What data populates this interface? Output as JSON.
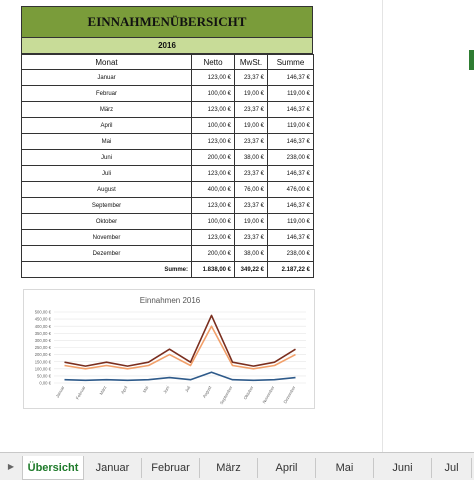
{
  "sheet": {
    "title": "EINNAHMENÜBERSICHT",
    "year": "2016",
    "headers": [
      "Monat",
      "Netto",
      "MwSt.",
      "Summe"
    ],
    "rows": [
      {
        "monat": "Januar",
        "netto": "123,00 €",
        "mwst": "23,37 €",
        "summe": "146,37 €"
      },
      {
        "monat": "Februar",
        "netto": "100,00 €",
        "mwst": "19,00 €",
        "summe": "119,00 €"
      },
      {
        "monat": "März",
        "netto": "123,00 €",
        "mwst": "23,37 €",
        "summe": "146,37 €"
      },
      {
        "monat": "April",
        "netto": "100,00 €",
        "mwst": "19,00 €",
        "summe": "119,00 €"
      },
      {
        "monat": "Mai",
        "netto": "123,00 €",
        "mwst": "23,37 €",
        "summe": "146,37 €"
      },
      {
        "monat": "Juni",
        "netto": "200,00 €",
        "mwst": "38,00 €",
        "summe": "238,00 €"
      },
      {
        "monat": "Juli",
        "netto": "123,00 €",
        "mwst": "23,37 €",
        "summe": "146,37 €"
      },
      {
        "monat": "August",
        "netto": "400,00 €",
        "mwst": "76,00 €",
        "summe": "476,00 €"
      },
      {
        "monat": "September",
        "netto": "123,00 €",
        "mwst": "23,37 €",
        "summe": "146,37 €"
      },
      {
        "monat": "Oktober",
        "netto": "100,00 €",
        "mwst": "19,00 €",
        "summe": "119,00 €"
      },
      {
        "monat": "November",
        "netto": "123,00 €",
        "mwst": "23,37 €",
        "summe": "146,37 €"
      },
      {
        "monat": "Dezember",
        "netto": "200,00 €",
        "mwst": "38,00 €",
        "summe": "238,00 €"
      }
    ],
    "summe_label": "Summe:",
    "totals": {
      "netto": "1.838,00 €",
      "mwst": "349,22 €",
      "summe": "2.187,22 €"
    }
  },
  "chart_data": {
    "type": "line",
    "title": "Einnahmen 2016",
    "categories": [
      "Januar",
      "Februar",
      "März",
      "April",
      "Mai",
      "Juni",
      "Juli",
      "August",
      "September",
      "Oktober",
      "November",
      "Dezember"
    ],
    "y_ticks": [
      "0,00 €",
      "50,00 €",
      "100,00 €",
      "150,00 €",
      "200,00 €",
      "250,00 €",
      "300,00 €",
      "350,00 €",
      "400,00 €",
      "450,00 €",
      "500,00 €"
    ],
    "ylim": [
      0,
      500
    ],
    "series": [
      {
        "values": [
          23.37,
          19,
          23.37,
          19,
          23.37,
          38,
          23.37,
          76,
          23.37,
          19,
          23.37,
          38
        ],
        "color": "#2e5a8a"
      },
      {
        "values": [
          123,
          100,
          123,
          100,
          123,
          200,
          123,
          400,
          123,
          100,
          123,
          200
        ],
        "color": "#f2a06a"
      },
      {
        "values": [
          146.37,
          119,
          146.37,
          119,
          146.37,
          238,
          146.37,
          476,
          146.37,
          119,
          146.37,
          238
        ],
        "color": "#7a2e1e"
      }
    ],
    "grid": true,
    "legend": "none"
  },
  "tabs": [
    {
      "label": "Übersicht",
      "active": true
    },
    {
      "label": "Januar"
    },
    {
      "label": "Februar"
    },
    {
      "label": "März"
    },
    {
      "label": "April"
    },
    {
      "label": "Mai"
    },
    {
      "label": "Juni"
    },
    {
      "label": "Jul"
    }
  ],
  "tab_scroll_icon": "triangle-right-icon"
}
